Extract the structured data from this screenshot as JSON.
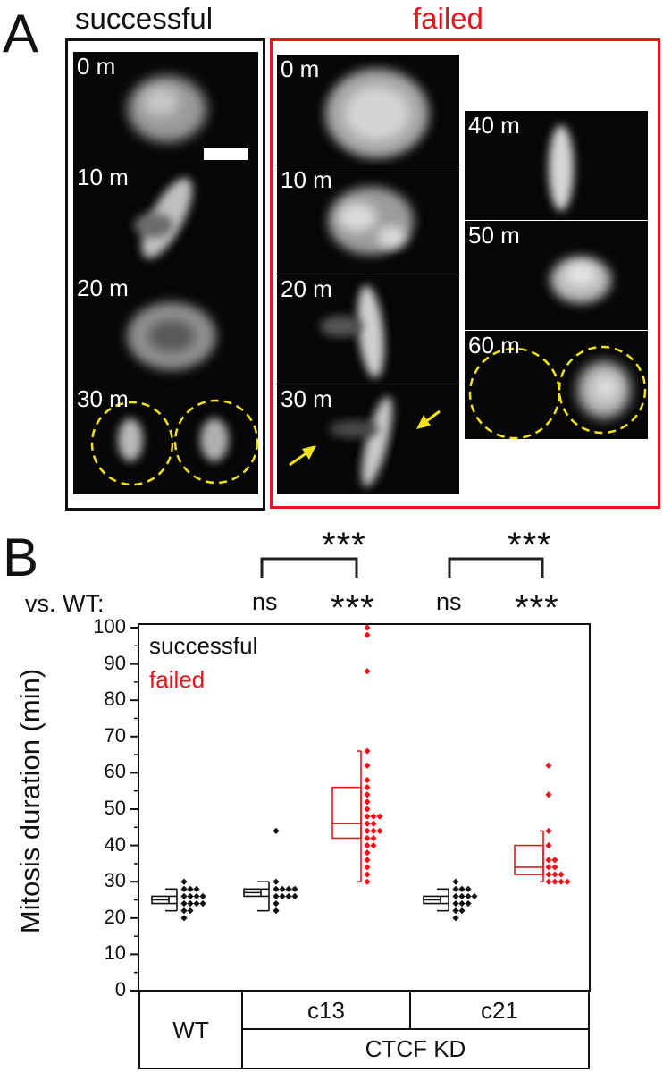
{
  "panel_a": {
    "letter": "A",
    "successful_heading": "successful",
    "failed_heading": "failed",
    "successful_times": [
      "0 m",
      "10 m",
      "20 m",
      "30 m"
    ],
    "failed_times_left": [
      "0 m",
      "10 m",
      "20 m",
      "30 m"
    ],
    "failed_times_right": [
      "40 m",
      "50 m",
      "60 m"
    ],
    "colors": {
      "successful_frame": "#111111",
      "failed_frame": "#e8141c",
      "daughter_outline": "#f2e21a",
      "arrow": "#f2e21a",
      "scale_bar": "#ffffff"
    }
  },
  "panel_b": {
    "letter": "B",
    "vs_wt_label": "vs. WT:",
    "vs_wt": [
      "ns",
      "***",
      "ns",
      "***"
    ],
    "bracket_stats": [
      "***",
      "***"
    ],
    "table": {
      "wt": "WT",
      "c13": "c13",
      "c21": "c21",
      "group": "CTCF KD"
    }
  },
  "chart_data": {
    "type": "scatter",
    "ylabel": "Mitosis duration (min)",
    "ylim": [
      0,
      100
    ],
    "yticks": [
      "0",
      "10",
      "20",
      "30",
      "40",
      "50",
      "60",
      "70",
      "80",
      "90",
      "100"
    ],
    "legend": [
      {
        "name": "successful",
        "color": "#111111"
      },
      {
        "name": "failed",
        "color": "#e8141c"
      }
    ],
    "groups": [
      {
        "category": "WT",
        "outcome": "successful",
        "color": "#111111",
        "box": {
          "whisker_low": 22,
          "q1": 24,
          "median": 25,
          "q3": 26,
          "whisker_high": 28
        },
        "points": [
          20,
          22,
          22,
          24,
          24,
          24,
          24,
          26,
          26,
          26,
          26,
          28,
          28,
          28,
          30
        ]
      },
      {
        "category": "c13",
        "outcome": "successful",
        "color": "#111111",
        "box": {
          "whisker_low": 22,
          "q1": 26,
          "median": 27,
          "q3": 28,
          "whisker_high": 30
        },
        "points": [
          22,
          24,
          26,
          26,
          26,
          26,
          28,
          28,
          28,
          28,
          30,
          44
        ]
      },
      {
        "category": "c13",
        "outcome": "failed",
        "color": "#e8141c",
        "box": {
          "whisker_low": 30,
          "q1": 42,
          "median": 46,
          "q3": 56,
          "whisker_high": 66
        },
        "points": [
          30,
          32,
          34,
          36,
          38,
          40,
          40,
          42,
          42,
          44,
          44,
          44,
          46,
          46,
          48,
          48,
          48,
          50,
          52,
          54,
          56,
          58,
          62,
          66,
          88,
          98,
          100
        ]
      },
      {
        "category": "c21",
        "outcome": "successful",
        "color": "#111111",
        "box": {
          "whisker_low": 22,
          "q1": 24,
          "median": 25,
          "q3": 26,
          "whisker_high": 28
        },
        "points": [
          20,
          22,
          22,
          24,
          24,
          24,
          26,
          26,
          26,
          26,
          28,
          28,
          28,
          30
        ]
      },
      {
        "category": "c21",
        "outcome": "failed",
        "color": "#e8141c",
        "box": {
          "whisker_low": 30,
          "q1": 32,
          "median": 34,
          "q3": 40,
          "whisker_high": 44
        },
        "points": [
          30,
          30,
          30,
          30,
          32,
          32,
          32,
          34,
          34,
          36,
          36,
          40,
          44,
          54,
          62
        ]
      }
    ]
  }
}
